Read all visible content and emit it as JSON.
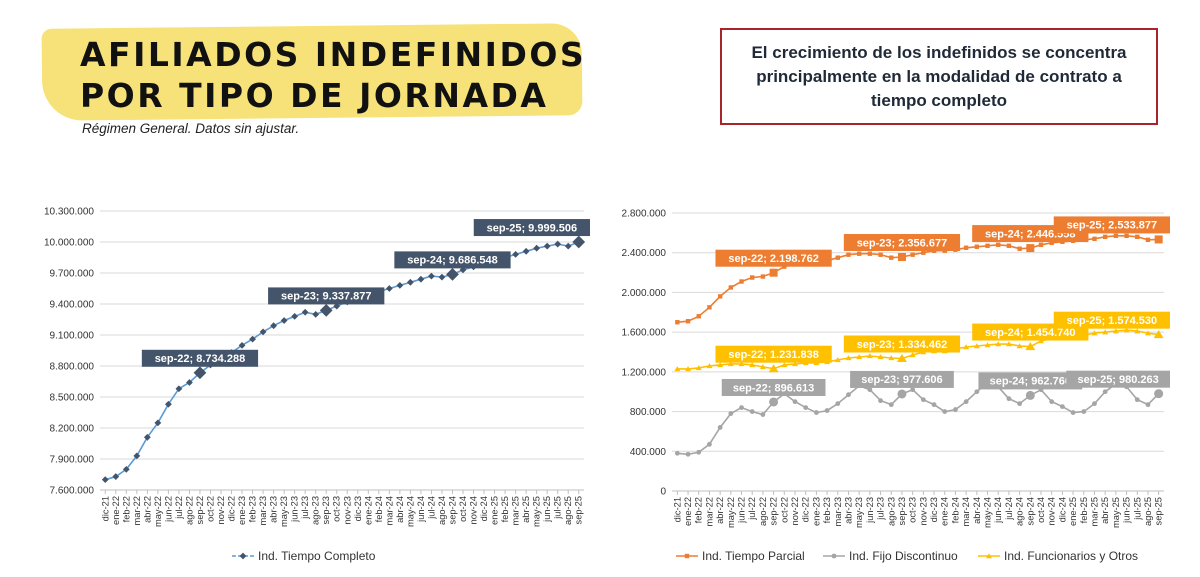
{
  "header": {
    "title_line1": "AFILIADOS INDEFINIDOS",
    "title_line2": "POR TIPO DE JORNADA",
    "subtitle": "Régimen General. Datos sin ajustar.",
    "callout": "El crecimiento de los indefinidos se concentra principalmente en la modalidad de contrato a tiempo completo"
  },
  "chart_data": [
    {
      "type": "line",
      "x": [
        "dic-21",
        "ene-22",
        "feb-22",
        "mar-22",
        "abr-22",
        "may-22",
        "jun-22",
        "jul-22",
        "ago-22",
        "sep-22",
        "oct-22",
        "nov-22",
        "dic-22",
        "ene-23",
        "feb-23",
        "mar-23",
        "abr-23",
        "may-23",
        "jun-23",
        "jul-23",
        "ago-23",
        "sep-23",
        "oct-23",
        "nov-23",
        "dic-23",
        "ene-24",
        "feb-24",
        "mar-24",
        "abr-24",
        "may-24",
        "jun-24",
        "jul-24",
        "ago-24",
        "sep-24",
        "oct-24",
        "nov-24",
        "dic-24",
        "ene-25",
        "feb-25",
        "mar-25",
        "abr-25",
        "may-25",
        "jun-25",
        "jul-25",
        "ago-25",
        "sep-25"
      ],
      "series": [
        {
          "name": "Ind. Tiempo Completo",
          "color": "#44546a",
          "line_color": "#5b9bd5",
          "values": [
            7700000,
            7730000,
            7800000,
            7930000,
            8110000,
            8250000,
            8430000,
            8580000,
            8640000,
            8734288,
            8810000,
            8870000,
            8930000,
            9000000,
            9060000,
            9130000,
            9190000,
            9240000,
            9280000,
            9320000,
            9300000,
            9337877,
            9380000,
            9420000,
            9460000,
            9490000,
            9520000,
            9550000,
            9580000,
            9610000,
            9640000,
            9670000,
            9660000,
            9686548,
            9730000,
            9760000,
            9790000,
            9820000,
            9850000,
            9880000,
            9910000,
            9940000,
            9960000,
            9980000,
            9960000,
            9999506
          ]
        }
      ],
      "ylim": [
        7600000,
        10300000
      ],
      "yticks": [
        "7.600.000",
        "7.900.000",
        "8.200.000",
        "8.500.000",
        "8.800.000",
        "9.100.000",
        "9.400.000",
        "9.700.000",
        "10.000.000",
        "10.300.000"
      ],
      "annotations": [
        {
          "label": "sep-22; 8.734.288",
          "index": 9
        },
        {
          "label": "sep-23; 9.337.877",
          "index": 21
        },
        {
          "label": "sep-24; 9.686.548",
          "index": 33
        },
        {
          "label": "sep-25; 9.999.506",
          "index": 45
        }
      ],
      "legend": "bottom"
    },
    {
      "type": "line",
      "x": [
        "dic-21",
        "ene-22",
        "feb-22",
        "mar-22",
        "abr-22",
        "may-22",
        "jun-22",
        "jul-22",
        "ago-22",
        "sep-22",
        "oct-22",
        "nov-22",
        "dic-22",
        "ene-23",
        "feb-23",
        "mar-23",
        "abr-23",
        "may-23",
        "jun-23",
        "jul-23",
        "ago-23",
        "sep-23",
        "oct-23",
        "nov-23",
        "dic-23",
        "ene-24",
        "feb-24",
        "mar-24",
        "abr-24",
        "may-24",
        "jun-24",
        "jul-24",
        "ago-24",
        "sep-24",
        "oct-24",
        "nov-24",
        "dic-24",
        "ene-25",
        "feb-25",
        "mar-25",
        "abr-25",
        "may-25",
        "jun-25",
        "jul-25",
        "ago-25",
        "sep-25"
      ],
      "series": [
        {
          "name": "Ind. Tiempo Parcial",
          "color": "#ed7d31",
          "values": [
            1700000,
            1710000,
            1760000,
            1850000,
            1960000,
            2050000,
            2110000,
            2150000,
            2160000,
            2198762,
            2260000,
            2290000,
            2300000,
            2300000,
            2320000,
            2350000,
            2380000,
            2390000,
            2390000,
            2380000,
            2350000,
            2356677,
            2380000,
            2400000,
            2420000,
            2420000,
            2430000,
            2450000,
            2460000,
            2470000,
            2480000,
            2470000,
            2440000,
            2446558,
            2480000,
            2500000,
            2510000,
            2520000,
            2530000,
            2540000,
            2560000,
            2570000,
            2570000,
            2560000,
            2530000,
            2533877
          ]
        },
        {
          "name": "Ind. Fijo Discontinuo",
          "color": "#a5a5a5",
          "values": [
            380000,
            370000,
            390000,
            470000,
            640000,
            780000,
            840000,
            800000,
            770000,
            896613,
            980000,
            900000,
            840000,
            790000,
            810000,
            880000,
            970000,
            1060000,
            1020000,
            910000,
            870000,
            977606,
            1020000,
            920000,
            870000,
            800000,
            820000,
            900000,
            1000000,
            1090000,
            1050000,
            930000,
            880000,
            962766,
            1020000,
            900000,
            850000,
            790000,
            800000,
            880000,
            1000000,
            1080000,
            1050000,
            920000,
            870000,
            980263
          ]
        },
        {
          "name": "Ind. Funcionarios y Otros",
          "color": "#ffc000",
          "values": [
            1230000,
            1230000,
            1240000,
            1260000,
            1270000,
            1280000,
            1280000,
            1270000,
            1250000,
            1231838,
            1270000,
            1280000,
            1290000,
            1290000,
            1300000,
            1320000,
            1340000,
            1350000,
            1360000,
            1350000,
            1340000,
            1334462,
            1370000,
            1400000,
            1410000,
            1410000,
            1430000,
            1450000,
            1460000,
            1470000,
            1480000,
            1480000,
            1460000,
            1454740,
            1510000,
            1540000,
            1550000,
            1560000,
            1570000,
            1590000,
            1600000,
            1610000,
            1620000,
            1610000,
            1590000,
            1574530
          ]
        }
      ],
      "ylim": [
        0,
        2800000
      ],
      "yticks": [
        "0",
        "400.000",
        "800.000",
        "1.200.000",
        "1.600.000",
        "2.000.000",
        "2.400.000",
        "2.800.000"
      ],
      "annotations": [
        {
          "label": "sep-22; 2.198.762",
          "series": 0,
          "index": 9
        },
        {
          "label": "sep-23; 2.356.677",
          "series": 0,
          "index": 21
        },
        {
          "label": "sep-24; 2.446.558",
          "series": 0,
          "index": 33
        },
        {
          "label": "sep-25; 2.533.877",
          "series": 0,
          "index": 45
        },
        {
          "label": "sep-22; 1.231.838",
          "series": 2,
          "index": 9
        },
        {
          "label": "sep-23; 1.334.462",
          "series": 2,
          "index": 21
        },
        {
          "label": "sep-24; 1.454.740",
          "series": 2,
          "index": 33
        },
        {
          "label": "sep-25; 1.574.530",
          "series": 2,
          "index": 45
        },
        {
          "label": "sep-22; 896.613",
          "series": 1,
          "index": 9
        },
        {
          "label": "sep-23; 977.606",
          "series": 1,
          "index": 21
        },
        {
          "label": "sep-24; 962.766",
          "series": 1,
          "index": 33
        },
        {
          "label": "sep-25; 980.263",
          "series": 1,
          "index": 45
        }
      ],
      "legend": "bottom"
    }
  ]
}
